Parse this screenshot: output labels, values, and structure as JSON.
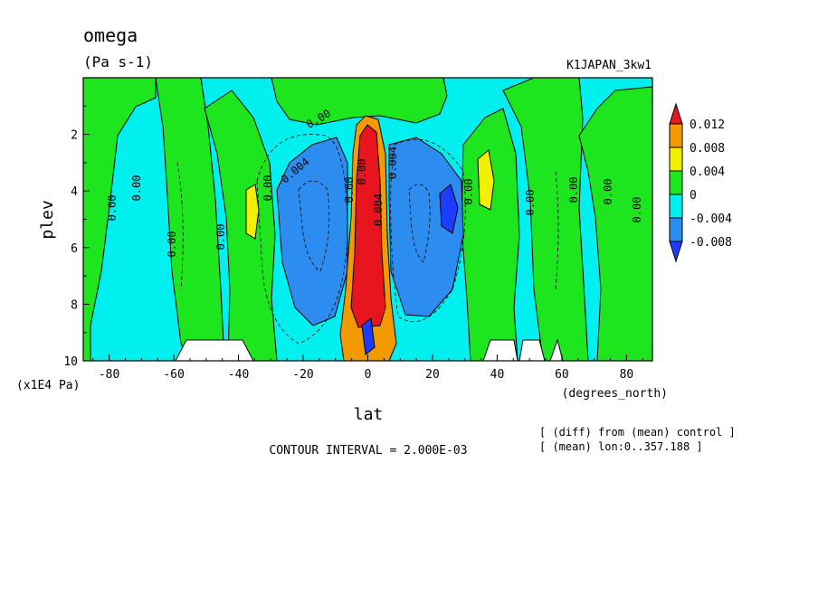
{
  "chart_data": {
    "type": "heatmap",
    "title": "omega",
    "subtitle": "(Pa s-1)",
    "run_label": "K1JAPAN_3kw1",
    "xlabel": "lat",
    "x_units": "(degrees_north)",
    "ylabel": "plev",
    "y_units": "(x1E4 Pa)",
    "xlim": [
      -88,
      88
    ],
    "ylim": [
      10,
      0
    ],
    "x_ticks": [
      "-80",
      "-60",
      "-40",
      "-20",
      "0",
      "20",
      "40",
      "60",
      "80"
    ],
    "y_ticks": [
      "2",
      "4",
      "6",
      "8",
      "10"
    ],
    "contour_interval": "CONTOUR INTERVAL = 2.000E-03",
    "notes": [
      "[ (diff) from (mean) control ]",
      "[ (mean) lon:0..357.188 ]"
    ],
    "colorbar": {
      "labels": [
        "0.012",
        "0.008",
        "0.004",
        "0",
        "-0.004",
        "-0.008"
      ],
      "colors": [
        "#e8141e",
        "#f29a00",
        "#f0f000",
        "#1ee61e",
        "#00f0f0",
        "#2d8cf0",
        "#1e3cff"
      ]
    },
    "contour_labels": [
      "0.00",
      "0.00",
      "0.00",
      "0.00",
      "0.00",
      "0.00",
      "-0.004",
      "0.00",
      "0.00",
      "0.004",
      "0.004",
      "0.00",
      "0.00",
      "0.00",
      "0.00",
      "0.00"
    ],
    "fields": {
      "background": "#00f0f0",
      "green_bands": [
        [
          -82,
          -68
        ],
        [
          -60,
          -48
        ],
        [
          -42,
          -34
        ],
        [
          28,
          40
        ],
        [
          48,
          60
        ],
        [
          66,
          80
        ]
      ],
      "blue_lobes": [
        [
          -26,
          -10
        ],
        [
          10,
          28
        ]
      ],
      "red_column": [
        -5,
        5
      ]
    }
  }
}
